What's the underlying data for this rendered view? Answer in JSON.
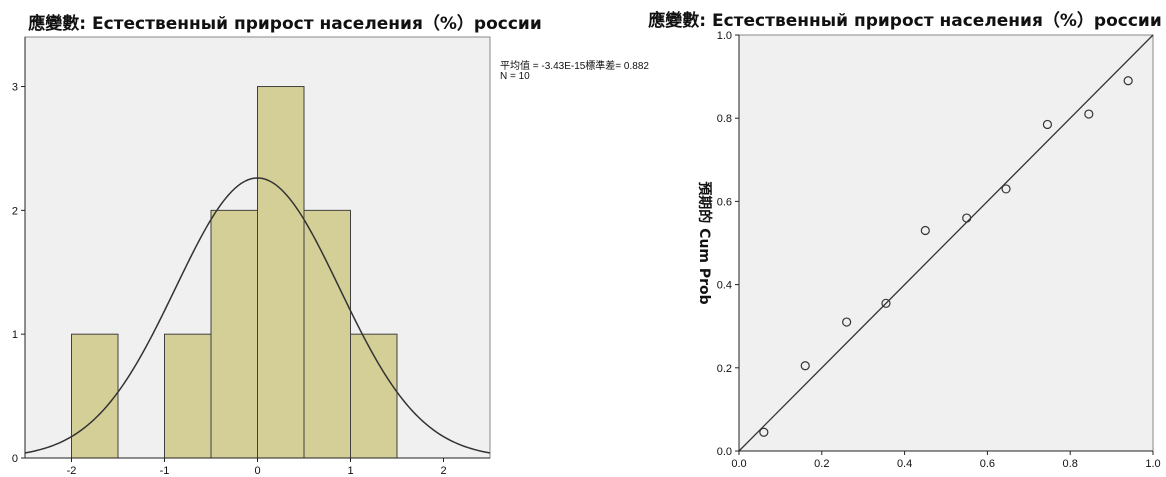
{
  "chart_data": [
    {
      "type": "bar",
      "title": "應變數: Естественный прирост населения（%）россии",
      "bin_edges": [
        -2,
        -1.5,
        -1,
        -0.5,
        0,
        0.5,
        1,
        1.5
      ],
      "values": [
        1,
        0,
        1,
        2,
        3,
        2,
        1
      ],
      "xlim": [
        -2.5,
        2.5
      ],
      "ylim": [
        0,
        3.4
      ],
      "x_ticks": [
        "-2",
        "-1",
        "0",
        "1",
        "2"
      ],
      "y_ticks": [
        "0",
        "1",
        "2",
        "3"
      ],
      "stats_line1": "平均值 = -3.43E-15標準差= 0.882",
      "stats_line2": "N = 10",
      "normal_curve": {
        "mean": 0,
        "sd": 0.882,
        "n": 10,
        "bin_width": 0.5
      },
      "colors": {
        "bar_fill": "#d4cf96",
        "bar_stroke": "#404040",
        "plot_bg": "#f0f0f0",
        "curve": "#333333"
      }
    },
    {
      "type": "scatter",
      "title": "應變數: Естественный прирост населения（%）россии",
      "ylabel": "預期的 Cum Prob",
      "x": [
        0.06,
        0.16,
        0.26,
        0.355,
        0.45,
        0.55,
        0.645,
        0.745,
        0.845,
        0.94
      ],
      "y": [
        0.045,
        0.205,
        0.31,
        0.355,
        0.53,
        0.56,
        0.63,
        0.785,
        0.81,
        0.89
      ],
      "xlim": [
        0,
        1
      ],
      "ylim": [
        0,
        1
      ],
      "x_ticks": [
        "0.0",
        "0.2",
        "0.4",
        "0.6",
        "0.8",
        "1.0"
      ],
      "y_ticks": [
        "0.0",
        "0.2",
        "0.4",
        "0.6",
        "0.8",
        "1.0"
      ],
      "reference_line": [
        [
          0,
          0
        ],
        [
          1,
          1
        ]
      ],
      "colors": {
        "plot_bg": "#f0f0f0",
        "marker": "#333333",
        "line": "#333333"
      }
    }
  ]
}
